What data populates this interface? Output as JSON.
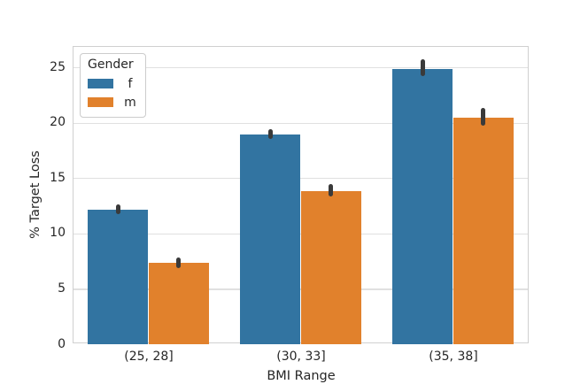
{
  "chart_data": {
    "type": "bar",
    "title": "",
    "xlabel": "BMI Range",
    "ylabel": "% Target Loss",
    "categories": [
      "(25, 28]",
      "(30, 33]",
      "(35, 38]"
    ],
    "series": [
      {
        "name": "f",
        "color": "#3274a1",
        "values": [
          12.2,
          19.0,
          24.9
        ],
        "error_ranges": [
          [
            11.8,
            12.7
          ],
          [
            18.6,
            19.5
          ],
          [
            24.3,
            25.8
          ]
        ]
      },
      {
        "name": "m",
        "color": "#e1812c",
        "values": [
          7.4,
          13.9,
          20.5
        ],
        "error_ranges": [
          [
            6.9,
            7.9
          ],
          [
            13.4,
            14.5
          ],
          [
            19.8,
            21.4
          ]
        ]
      }
    ],
    "legend": {
      "title": "Gender",
      "position": "upper left",
      "framed": true
    },
    "y_ticks": [
      0,
      5,
      10,
      15,
      20,
      25
    ],
    "ylim": [
      0,
      26.9
    ],
    "grid": "horizontal",
    "colors": {
      "error_bar": "#3a3a3a",
      "grid_line": "#e0e0e0",
      "spine": "#d0d0d0",
      "text": "#262626",
      "background": "#ffffff"
    }
  }
}
